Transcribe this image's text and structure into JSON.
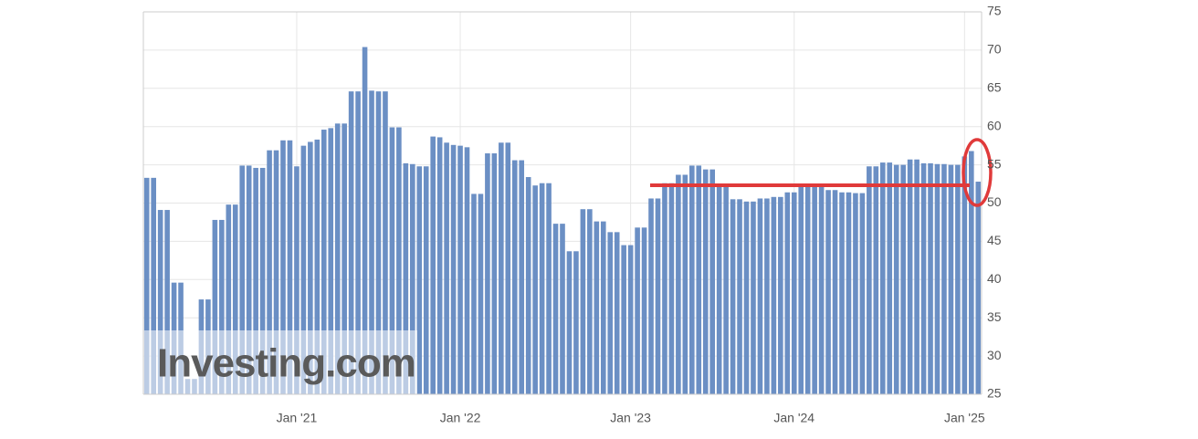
{
  "chart_data": {
    "type": "bar",
    "color": "#6b8fc4",
    "grid": true,
    "watermark": "Investing.com",
    "ylim": [
      25,
      75
    ],
    "yticks": [
      25,
      30,
      35,
      40,
      45,
      50,
      55,
      60,
      65,
      70,
      75
    ],
    "categories": [
      null,
      null,
      null,
      null,
      null,
      null,
      null,
      null,
      null,
      null,
      null,
      null,
      null,
      null,
      null,
      null,
      null,
      null,
      null,
      null,
      null,
      null,
      "Jan '21",
      null,
      null,
      null,
      null,
      null,
      null,
      null,
      null,
      null,
      null,
      null,
      null,
      null,
      null,
      null,
      null,
      null,
      null,
      null,
      null,
      null,
      null,
      null,
      "Jan '22",
      null,
      null,
      null,
      null,
      null,
      null,
      null,
      null,
      null,
      null,
      null,
      null,
      null,
      null,
      null,
      null,
      null,
      null,
      null,
      null,
      null,
      null,
      null,
      null,
      "Jan '23",
      null,
      null,
      null,
      null,
      null,
      null,
      null,
      null,
      null,
      null,
      null,
      null,
      null,
      null,
      null,
      null,
      null,
      null,
      null,
      null,
      null,
      null,
      null,
      "Jan '24",
      null,
      null,
      null,
      null,
      null,
      null,
      null,
      null,
      null,
      null,
      null,
      null,
      null,
      null,
      null,
      null,
      null,
      null,
      null,
      null,
      null,
      null,
      null,
      null,
      "Jan '25",
      null,
      null
    ],
    "values": [
      53.3,
      53.3,
      49.1,
      49.1,
      39.6,
      39.6,
      27,
      27,
      37.4,
      37.4,
      47.8,
      47.8,
      49.8,
      49.8,
      54.9,
      54.9,
      54.6,
      54.6,
      56.9,
      56.9,
      58.2,
      58.2,
      54.8,
      57.5,
      58.0,
      58.3,
      59.6,
      59.8,
      60.4,
      60.4,
      64.6,
      64.6,
      70.4,
      64.7,
      64.6,
      64.6,
      59.9,
      59.9,
      55.2,
      55.1,
      54.8,
      54.8,
      58.7,
      58.6,
      57.9,
      57.6,
      57.5,
      57.3,
      51.2,
      51.2,
      56.5,
      56.5,
      57.9,
      57.9,
      55.6,
      55.6,
      53.4,
      52.3,
      52.6,
      52.6,
      47.3,
      47.3,
      43.7,
      43.7,
      49.2,
      49.2,
      47.6,
      47.6,
      46.2,
      46.2,
      44.5,
      44.5,
      46.8,
      46.8,
      50.6,
      50.6,
      52.6,
      52.6,
      53.7,
      53.7,
      54.9,
      54.9,
      54.4,
      54.4,
      52.3,
      52.3,
      50.5,
      50.5,
      50.2,
      50.2,
      50.6,
      50.6,
      50.8,
      50.8,
      51.4,
      51.4,
      52.5,
      52.5,
      52.4,
      52.4,
      51.7,
      51.7,
      51.4,
      51.4,
      51.3,
      51.3,
      54.8,
      54.8,
      55.3,
      55.3,
      55.0,
      55.0,
      55.7,
      55.7,
      55.2,
      55.2,
      55.1,
      55.1,
      55.0,
      55.0,
      56.1,
      56.8,
      52.8
    ]
  }
}
